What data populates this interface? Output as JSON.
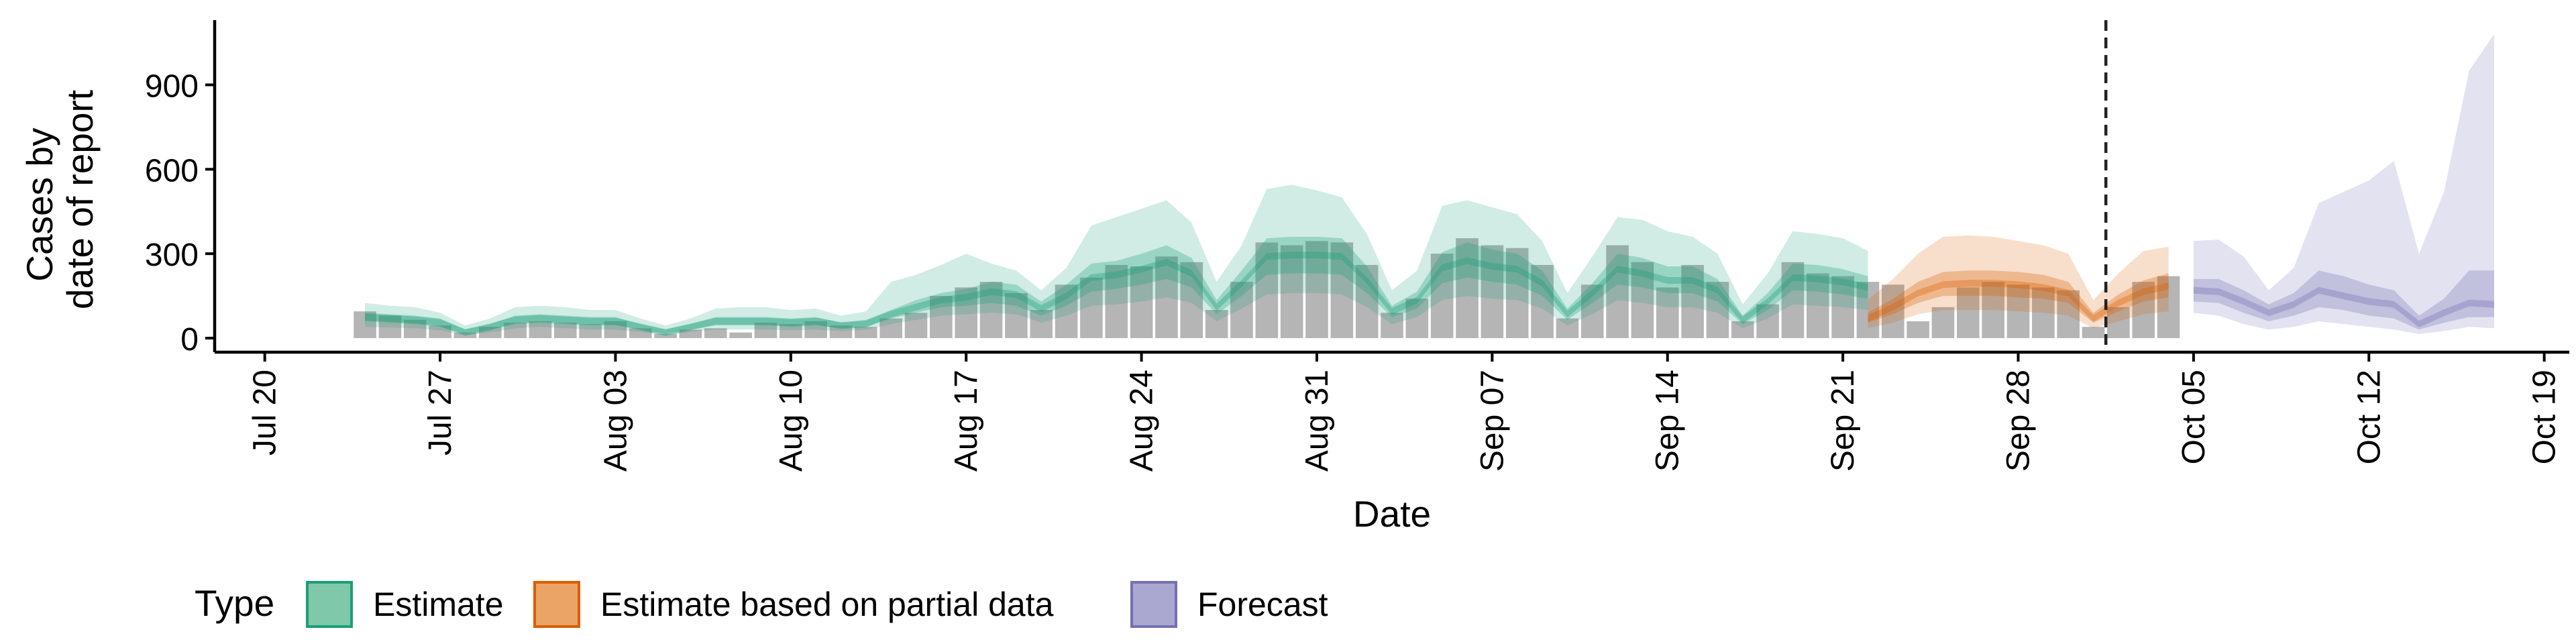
{
  "chart_data": {
    "type": "area",
    "xlabel": "Date",
    "ylabel_lines": [
      "Cases by",
      "date of report"
    ],
    "x_ticks": [
      "Jul 20",
      "Jul 27",
      "Aug 03",
      "Aug 10",
      "Aug 17",
      "Aug 24",
      "Aug 31",
      "Sep 07",
      "Sep 14",
      "Sep 21",
      "Sep 28",
      "Oct 05",
      "Oct 12",
      "Oct 19"
    ],
    "x_tick_dates": [
      "2020-07-20",
      "2020-07-27",
      "2020-08-03",
      "2020-08-10",
      "2020-08-17",
      "2020-08-24",
      "2020-08-31",
      "2020-09-07",
      "2020-09-14",
      "2020-09-21",
      "2020-09-28",
      "2020-10-05",
      "2020-10-12",
      "2020-10-19"
    ],
    "y_ticks": [
      0,
      300,
      600,
      900
    ],
    "ylim": [
      -50,
      1130
    ],
    "xlim": [
      "2020-07-18",
      "2020-10-20"
    ],
    "vline_date": "2020-10-02",
    "legend": {
      "title": "Type",
      "position": "bottom",
      "items": [
        {
          "label": "Estimate",
          "fill": "#7fc8aa",
          "stroke": "#1b9e77"
        },
        {
          "label": "Estimate based on partial data",
          "fill": "#eba366",
          "stroke": "#d95f02"
        },
        {
          "label": "Forecast",
          "fill": "#aaa7d1",
          "stroke": "#7570b3"
        }
      ]
    },
    "colors": {
      "estimate": "#1b9e77",
      "partial": "#d95f02",
      "forecast": "#7570b3",
      "bars": "#a8a8a8"
    },
    "bars": [
      {
        "date": "2020-07-24",
        "value": 95
      },
      {
        "date": "2020-07-25",
        "value": 80
      },
      {
        "date": "2020-07-26",
        "value": 65
      },
      {
        "date": "2020-07-27",
        "value": 45
      },
      {
        "date": "2020-07-28",
        "value": 20
      },
      {
        "date": "2020-07-29",
        "value": 40
      },
      {
        "date": "2020-07-30",
        "value": 55
      },
      {
        "date": "2020-07-31",
        "value": 60
      },
      {
        "date": "2020-08-01",
        "value": 55
      },
      {
        "date": "2020-08-02",
        "value": 50
      },
      {
        "date": "2020-08-03",
        "value": 60
      },
      {
        "date": "2020-08-04",
        "value": 35
      },
      {
        "date": "2020-08-05",
        "value": 15
      },
      {
        "date": "2020-08-06",
        "value": 30
      },
      {
        "date": "2020-08-07",
        "value": 35
      },
      {
        "date": "2020-08-08",
        "value": 20
      },
      {
        "date": "2020-08-09",
        "value": 55
      },
      {
        "date": "2020-08-10",
        "value": 50
      },
      {
        "date": "2020-08-11",
        "value": 60
      },
      {
        "date": "2020-08-12",
        "value": 45
      },
      {
        "date": "2020-08-13",
        "value": 40
      },
      {
        "date": "2020-08-14",
        "value": 70
      },
      {
        "date": "2020-08-15",
        "value": 90
      },
      {
        "date": "2020-08-16",
        "value": 150
      },
      {
        "date": "2020-08-17",
        "value": 180
      },
      {
        "date": "2020-08-18",
        "value": 200
      },
      {
        "date": "2020-08-19",
        "value": 160
      },
      {
        "date": "2020-08-20",
        "value": 100
      },
      {
        "date": "2020-08-21",
        "value": 190
      },
      {
        "date": "2020-08-22",
        "value": 215
      },
      {
        "date": "2020-08-23",
        "value": 260
      },
      {
        "date": "2020-08-24",
        "value": 255
      },
      {
        "date": "2020-08-25",
        "value": 290
      },
      {
        "date": "2020-08-26",
        "value": 270
      },
      {
        "date": "2020-08-27",
        "value": 100
      },
      {
        "date": "2020-08-28",
        "value": 200
      },
      {
        "date": "2020-08-29",
        "value": 340
      },
      {
        "date": "2020-08-30",
        "value": 330
      },
      {
        "date": "2020-08-31",
        "value": 345
      },
      {
        "date": "2020-09-01",
        "value": 340
      },
      {
        "date": "2020-09-02",
        "value": 260
      },
      {
        "date": "2020-09-03",
        "value": 90
      },
      {
        "date": "2020-09-04",
        "value": 140
      },
      {
        "date": "2020-09-05",
        "value": 300
      },
      {
        "date": "2020-09-06",
        "value": 355
      },
      {
        "date": "2020-09-07",
        "value": 330
      },
      {
        "date": "2020-09-08",
        "value": 320
      },
      {
        "date": "2020-09-09",
        "value": 260
      },
      {
        "date": "2020-09-10",
        "value": 70
      },
      {
        "date": "2020-09-11",
        "value": 190
      },
      {
        "date": "2020-09-12",
        "value": 330
      },
      {
        "date": "2020-09-13",
        "value": 270
      },
      {
        "date": "2020-09-14",
        "value": 180
      },
      {
        "date": "2020-09-15",
        "value": 260
      },
      {
        "date": "2020-09-16",
        "value": 200
      },
      {
        "date": "2020-09-17",
        "value": 60
      },
      {
        "date": "2020-09-18",
        "value": 120
      },
      {
        "date": "2020-09-19",
        "value": 270
      },
      {
        "date": "2020-09-20",
        "value": 230
      },
      {
        "date": "2020-09-21",
        "value": 220
      },
      {
        "date": "2020-09-22",
        "value": 200
      },
      {
        "date": "2020-09-23",
        "value": 190
      },
      {
        "date": "2020-09-24",
        "value": 60
      },
      {
        "date": "2020-09-25",
        "value": 110
      },
      {
        "date": "2020-09-26",
        "value": 180
      },
      {
        "date": "2020-09-27",
        "value": 200
      },
      {
        "date": "2020-09-28",
        "value": 190
      },
      {
        "date": "2020-09-29",
        "value": 180
      },
      {
        "date": "2020-09-30",
        "value": 170
      },
      {
        "date": "2020-10-01",
        "value": 40
      },
      {
        "date": "2020-10-02",
        "value": 110
      },
      {
        "date": "2020-10-03",
        "value": 200
      },
      {
        "date": "2020-10-04",
        "value": 220
      }
    ],
    "bands": [
      {
        "type": "estimate",
        "dates": [
          "2020-07-24",
          "2020-07-25",
          "2020-07-26",
          "2020-07-27",
          "2020-07-28",
          "2020-07-29",
          "2020-07-30",
          "2020-07-31",
          "2020-08-01",
          "2020-08-02",
          "2020-08-03",
          "2020-08-04",
          "2020-08-05",
          "2020-08-06",
          "2020-08-07",
          "2020-08-08",
          "2020-08-09",
          "2020-08-10",
          "2020-08-11",
          "2020-08-12",
          "2020-08-13",
          "2020-08-14",
          "2020-08-15",
          "2020-08-16",
          "2020-08-17",
          "2020-08-18",
          "2020-08-19",
          "2020-08-20",
          "2020-08-21",
          "2020-08-22",
          "2020-08-23",
          "2020-08-24",
          "2020-08-25",
          "2020-08-26",
          "2020-08-27",
          "2020-08-28",
          "2020-08-29",
          "2020-08-30",
          "2020-08-31",
          "2020-09-01",
          "2020-09-02",
          "2020-09-03",
          "2020-09-04",
          "2020-09-05",
          "2020-09-06",
          "2020-09-07",
          "2020-09-08",
          "2020-09-09",
          "2020-09-10",
          "2020-09-11",
          "2020-09-12",
          "2020-09-13",
          "2020-09-14",
          "2020-09-15",
          "2020-09-16",
          "2020-09-17",
          "2020-09-18",
          "2020-09-19",
          "2020-09-20",
          "2020-09-21",
          "2020-09-22"
        ],
        "median": [
          75,
          70,
          65,
          55,
          20,
          40,
          65,
          70,
          65,
          60,
          60,
          40,
          20,
          40,
          60,
          60,
          60,
          55,
          60,
          45,
          50,
          85,
          110,
          135,
          145,
          165,
          155,
          105,
          150,
          215,
          225,
          245,
          270,
          230,
          110,
          195,
          290,
          295,
          295,
          290,
          205,
          95,
          135,
          250,
          275,
          255,
          245,
          195,
          85,
          160,
          245,
          230,
          205,
          205,
          170,
          65,
          130,
          215,
          210,
          200,
          180
        ],
        "inner_lo": [
          60,
          55,
          50,
          40,
          15,
          30,
          50,
          55,
          50,
          45,
          45,
          30,
          15,
          30,
          45,
          45,
          45,
          40,
          45,
          35,
          40,
          70,
          90,
          110,
          115,
          125,
          115,
          80,
          115,
          165,
          175,
          190,
          210,
          180,
          85,
          150,
          225,
          230,
          230,
          225,
          160,
          75,
          105,
          195,
          215,
          200,
          190,
          150,
          65,
          125,
          190,
          180,
          160,
          160,
          130,
          50,
          100,
          170,
          165,
          155,
          140
        ],
        "inner_hi": [
          90,
          85,
          80,
          70,
          30,
          50,
          80,
          85,
          80,
          75,
          75,
          50,
          30,
          50,
          75,
          75,
          75,
          70,
          75,
          55,
          65,
          100,
          135,
          160,
          175,
          200,
          190,
          130,
          190,
          265,
          275,
          300,
          330,
          285,
          135,
          240,
          355,
          360,
          360,
          355,
          255,
          115,
          165,
          305,
          340,
          315,
          300,
          240,
          105,
          195,
          300,
          285,
          255,
          255,
          210,
          80,
          160,
          265,
          260,
          245,
          220
        ],
        "outer_lo": [
          40,
          38,
          35,
          28,
          10,
          20,
          35,
          40,
          35,
          30,
          30,
          22,
          10,
          22,
          30,
          30,
          30,
          28,
          30,
          25,
          30,
          50,
          65,
          80,
          85,
          90,
          85,
          55,
          80,
          115,
          120,
          130,
          145,
          125,
          60,
          105,
          155,
          160,
          160,
          155,
          110,
          50,
          75,
          135,
          150,
          140,
          135,
          105,
          45,
          85,
          135,
          125,
          110,
          110,
          90,
          35,
          70,
          120,
          115,
          110,
          100
        ],
        "outer_hi": [
          125,
          115,
          110,
          90,
          45,
          70,
          110,
          115,
          110,
          100,
          100,
          70,
          45,
          70,
          105,
          110,
          110,
          100,
          105,
          80,
          95,
          200,
          225,
          260,
          300,
          265,
          240,
          170,
          250,
          400,
          430,
          460,
          490,
          410,
          200,
          330,
          530,
          545,
          525,
          500,
          370,
          170,
          240,
          470,
          490,
          465,
          440,
          345,
          160,
          290,
          430,
          420,
          380,
          360,
          300,
          120,
          230,
          380,
          370,
          355,
          310
        ]
      },
      {
        "type": "partial",
        "dates": [
          "2020-09-22",
          "2020-09-23",
          "2020-09-24",
          "2020-09-25",
          "2020-09-26",
          "2020-09-27",
          "2020-09-28",
          "2020-09-29",
          "2020-09-30",
          "2020-10-01",
          "2020-10-02",
          "2020-10-03",
          "2020-10-04"
        ],
        "median": [
          70,
          110,
          160,
          190,
          195,
          195,
          190,
          180,
          160,
          70,
          125,
          165,
          185
        ],
        "inner_lo": [
          55,
          85,
          125,
          150,
          150,
          150,
          145,
          140,
          125,
          55,
          95,
          130,
          145
        ],
        "inner_hi": [
          90,
          140,
          200,
          235,
          240,
          240,
          235,
          225,
          200,
          90,
          155,
          205,
          230
        ],
        "outer_lo": [
          35,
          55,
          85,
          100,
          100,
          100,
          95,
          90,
          80,
          35,
          60,
          85,
          95
        ],
        "outer_hi": [
          135,
          210,
          300,
          360,
          365,
          360,
          345,
          330,
          300,
          135,
          230,
          310,
          325
        ]
      },
      {
        "type": "forecast",
        "dates": [
          "2020-10-05",
          "2020-10-06",
          "2020-10-07",
          "2020-10-08",
          "2020-10-09",
          "2020-10-10",
          "2020-10-11",
          "2020-10-12",
          "2020-10-13",
          "2020-10-14",
          "2020-10-15",
          "2020-10-16",
          "2020-10-17"
        ],
        "median": [
          170,
          165,
          130,
          90,
          120,
          170,
          150,
          130,
          120,
          50,
          90,
          125,
          120
        ],
        "inner_lo": [
          130,
          125,
          90,
          60,
          80,
          110,
          100,
          80,
          70,
          30,
          55,
          75,
          75
        ],
        "inner_hi": [
          210,
          210,
          170,
          120,
          160,
          240,
          220,
          190,
          170,
          80,
          140,
          240,
          240
        ],
        "outer_lo": [
          90,
          80,
          50,
          30,
          40,
          60,
          50,
          40,
          30,
          15,
          25,
          40,
          35
        ],
        "outer_hi": [
          345,
          350,
          290,
          170,
          250,
          480,
          520,
          560,
          630,
          300,
          520,
          950,
          1080
        ]
      }
    ]
  }
}
